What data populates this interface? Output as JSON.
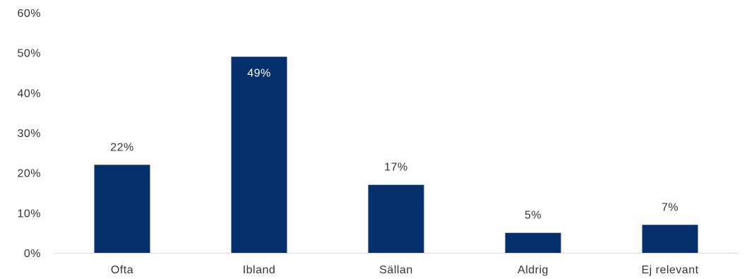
{
  "chart_data": {
    "type": "bar",
    "categories": [
      "Ofta",
      "Ibland",
      "Sällan",
      "Aldrig",
      "Ej relevant"
    ],
    "values": [
      22,
      49,
      17,
      5,
      7
    ],
    "value_labels": [
      "22%",
      "49%",
      "17%",
      "5%",
      "7%"
    ],
    "yticks": [
      "0%",
      "10%",
      "20%",
      "30%",
      "40%",
      "50%",
      "60%"
    ],
    "ylim": [
      0,
      60
    ],
    "grid": false,
    "legend": "none",
    "colors": {
      "bar": "#06306B",
      "label_outside": "#333333",
      "label_inside": "#ffffff",
      "axis": "#d9d9d9"
    }
  }
}
